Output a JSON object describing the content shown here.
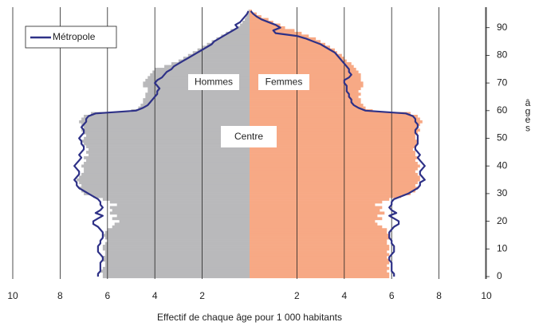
{
  "chart_data": {
    "type": "pyramid",
    "xlabel": "Effectif de chaque âge pour 1 000 habitants",
    "ylabel": "âges",
    "annotation": "Centre",
    "xlim": [
      0,
      10
    ],
    "xticks": [
      2,
      4,
      6,
      8,
      10
    ],
    "ylim": [
      0,
      97
    ],
    "yticks": [
      0,
      10,
      20,
      30,
      40,
      50,
      60,
      70,
      80,
      90
    ],
    "legend": "top-left",
    "ages": [
      0,
      1,
      2,
      3,
      4,
      5,
      6,
      7,
      8,
      9,
      10,
      11,
      12,
      13,
      14,
      15,
      16,
      17,
      18,
      19,
      20,
      21,
      22,
      23,
      24,
      25,
      26,
      27,
      28,
      29,
      30,
      31,
      32,
      33,
      34,
      35,
      36,
      37,
      38,
      39,
      40,
      41,
      42,
      43,
      44,
      45,
      46,
      47,
      48,
      49,
      50,
      51,
      52,
      53,
      54,
      55,
      56,
      57,
      58,
      59,
      60,
      61,
      62,
      63,
      64,
      65,
      66,
      67,
      68,
      69,
      70,
      71,
      72,
      73,
      74,
      75,
      76,
      77,
      78,
      79,
      80,
      81,
      82,
      83,
      84,
      85,
      86,
      87,
      88,
      89,
      90,
      91,
      92,
      93,
      94,
      95,
      96
    ],
    "series": [
      {
        "name": "Hommes",
        "side": "left",
        "color": "#b9b9bb",
        "values": [
          6.2,
          6.2,
          6.3,
          6.2,
          6.1,
          6.1,
          6.2,
          6.2,
          6.1,
          6.1,
          6.2,
          6.2,
          6.1,
          6.0,
          6.1,
          6.2,
          6.1,
          6.0,
          5.8,
          5.7,
          5.5,
          5.8,
          5.6,
          5.9,
          5.8,
          5.9,
          5.6,
          5.9,
          6.2,
          6.6,
          7.0,
          7.1,
          7.2,
          7.1,
          7.2,
          7.3,
          7.2,
          7.1,
          7.0,
          7.0,
          7.1,
          7.0,
          6.9,
          7.0,
          6.8,
          6.9,
          6.8,
          6.9,
          7.0,
          7.1,
          7.0,
          6.9,
          7.0,
          7.1,
          7.0,
          7.1,
          7.2,
          7.1,
          7.0,
          6.7,
          5.0,
          4.7,
          4.6,
          4.5,
          4.5,
          4.4,
          4.4,
          4.3,
          4.3,
          4.5,
          4.5,
          4.4,
          4.3,
          4.2,
          4.1,
          4.0,
          3.6,
          3.3,
          3.0,
          2.8,
          2.6,
          2.4,
          2.2,
          2.0,
          1.8,
          1.6,
          1.4,
          1.2,
          1.0,
          0.8,
          0.5,
          0.4,
          0.3,
          0.2,
          0.15,
          0.1,
          0.05
        ]
      },
      {
        "name": "Femmes",
        "side": "right",
        "color": "#f7a985",
        "values": [
          5.9,
          5.9,
          5.8,
          5.9,
          5.8,
          5.9,
          5.9,
          5.8,
          5.9,
          5.8,
          5.9,
          5.9,
          5.8,
          5.8,
          5.9,
          5.9,
          5.8,
          5.8,
          5.6,
          5.4,
          5.3,
          5.6,
          5.4,
          5.7,
          5.5,
          5.6,
          5.3,
          5.6,
          5.9,
          6.4,
          6.8,
          7.0,
          7.1,
          7.0,
          7.1,
          7.2,
          7.2,
          7.1,
          7.0,
          7.1,
          7.2,
          7.1,
          7.0,
          7.1,
          7.0,
          7.0,
          6.9,
          7.0,
          7.1,
          7.1,
          7.0,
          7.0,
          7.1,
          7.2,
          7.1,
          7.2,
          7.3,
          7.2,
          7.1,
          6.8,
          5.2,
          4.9,
          4.8,
          4.7,
          4.7,
          4.6,
          4.7,
          4.6,
          4.7,
          4.8,
          4.8,
          4.7,
          4.7,
          4.7,
          4.6,
          4.5,
          4.4,
          4.3,
          4.1,
          4.0,
          3.9,
          3.7,
          3.6,
          3.4,
          3.2,
          3.0,
          2.8,
          2.5,
          2.2,
          1.9,
          1.5,
          1.3,
          1.0,
          0.8,
          0.5,
          0.3,
          0.1
        ]
      }
    ],
    "reference": {
      "name": "Métropole",
      "color": "#2e3187",
      "left": [
        6.4,
        6.4,
        6.3,
        6.3,
        6.3,
        6.3,
        6.2,
        6.2,
        6.3,
        6.4,
        6.4,
        6.4,
        6.3,
        6.3,
        6.2,
        6.2,
        6.2,
        6.3,
        6.4,
        6.6,
        6.6,
        6.4,
        6.2,
        6.5,
        6.3,
        6.2,
        6.3,
        6.3,
        6.4,
        6.6,
        6.8,
        7.0,
        7.2,
        7.3,
        7.3,
        7.4,
        7.3,
        7.2,
        7.2,
        7.3,
        7.4,
        7.3,
        7.2,
        7.1,
        7.2,
        7.1,
        7.0,
        7.0,
        7.1,
        7.1,
        7.2,
        7.1,
        7.0,
        7.0,
        7.1,
        7.0,
        6.9,
        6.9,
        6.8,
        6.5,
        4.8,
        4.5,
        4.3,
        4.2,
        4.1,
        4.0,
        3.9,
        3.9,
        3.8,
        3.9,
        4.0,
        3.9,
        3.7,
        3.6,
        3.5,
        3.3,
        3.2,
        3.0,
        2.8,
        2.6,
        2.4,
        2.2,
        2.0,
        1.8,
        1.6,
        1.5,
        1.3,
        1.1,
        0.9,
        0.7,
        0.5,
        0.6,
        0.4,
        0.3,
        0.2,
        0.1,
        0.05
      ],
      "right": [
        6.1,
        6.1,
        6.0,
        6.0,
        6.0,
        6.0,
        5.9,
        5.9,
        6.0,
        6.1,
        6.1,
        6.1,
        6.0,
        6.0,
        5.9,
        5.9,
        5.9,
        6.0,
        6.1,
        6.3,
        6.3,
        6.1,
        5.9,
        6.2,
        6.0,
        5.9,
        6.0,
        6.0,
        6.1,
        6.4,
        6.7,
        6.9,
        7.1,
        7.2,
        7.2,
        7.4,
        7.3,
        7.2,
        7.2,
        7.3,
        7.4,
        7.3,
        7.2,
        7.1,
        7.2,
        7.1,
        7.0,
        7.0,
        7.1,
        7.1,
        7.1,
        7.1,
        7.0,
        7.0,
        7.1,
        7.1,
        7.0,
        7.0,
        6.9,
        6.6,
        4.9,
        4.6,
        4.4,
        4.3,
        4.3,
        4.2,
        4.2,
        4.1,
        4.1,
        4.1,
        4.0,
        4.0,
        4.2,
        4.3,
        4.2,
        4.2,
        4.1,
        4.0,
        3.9,
        3.8,
        3.7,
        3.6,
        3.4,
        3.2,
        3.0,
        2.7,
        2.4,
        2.0,
        1.1,
        1.0,
        1.3,
        1.1,
        0.8,
        0.5,
        0.3,
        0.15,
        0.05
      ]
    }
  }
}
